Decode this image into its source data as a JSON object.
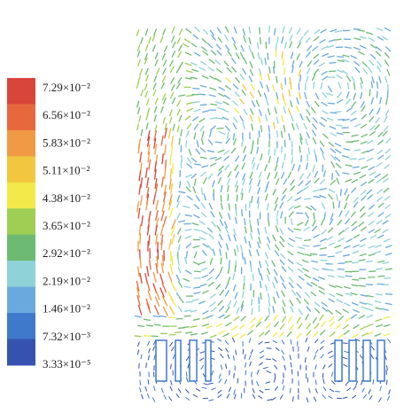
{
  "colorbar": {
    "labels": [
      "7.29×10⁻²",
      "6.56×10⁻²",
      "5.83×10⁻²",
      "5.11×10⁻²",
      "4.38×10⁻²",
      "3.65×10⁻²",
      "2.92×10⁻²",
      "2.19×10⁻²",
      "1.46×10⁻²",
      "7.32×10⁻³",
      "3.33×10⁻⁵"
    ],
    "colors": [
      "#d9453a",
      "#e8683e",
      "#f09a45",
      "#f2c63e",
      "#f3e94a",
      "#9fce55",
      "#6dba72",
      "#8fd2d8",
      "#6aa9de",
      "#3f79cc",
      "#3552b0"
    ]
  }
}
